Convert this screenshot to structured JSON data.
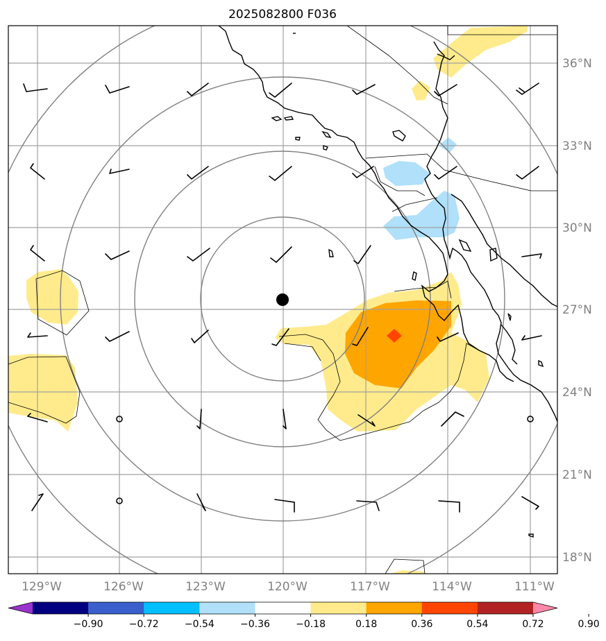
{
  "title": "2025082800 F036",
  "longitude_labels": [
    "129°W",
    "126°W",
    "123°W",
    "120°W",
    "117°W",
    "114°W",
    "111°W"
  ],
  "latitude_labels": [
    "36°N",
    "33°N",
    "30°N",
    "27°N",
    "24°N",
    "21°N",
    "18°N"
  ],
  "colorbar": {
    "ticks": [
      "−0.90",
      "−0.72",
      "−0.54",
      "−0.36",
      "−0.18",
      "0.18",
      "0.36",
      "0.54",
      "0.72",
      "0.90"
    ],
    "colors": [
      "#9933cc",
      "#000080",
      "#3a5fcd",
      "#00bfff",
      "#b0e0fa",
      "#ffffff",
      "#ffeb8c",
      "#ffa500",
      "#ff4500",
      "#b22222",
      "#ff88aa"
    ]
  },
  "colors": {
    "positive_light": "#ffeb8c",
    "positive_mid": "#ffa500",
    "positive_high": "#ff4500",
    "negative_light": "#b0e0fa",
    "rings": "#808080",
    "grid": "#a0a0a0"
  },
  "center_marker": "filled-circle"
}
